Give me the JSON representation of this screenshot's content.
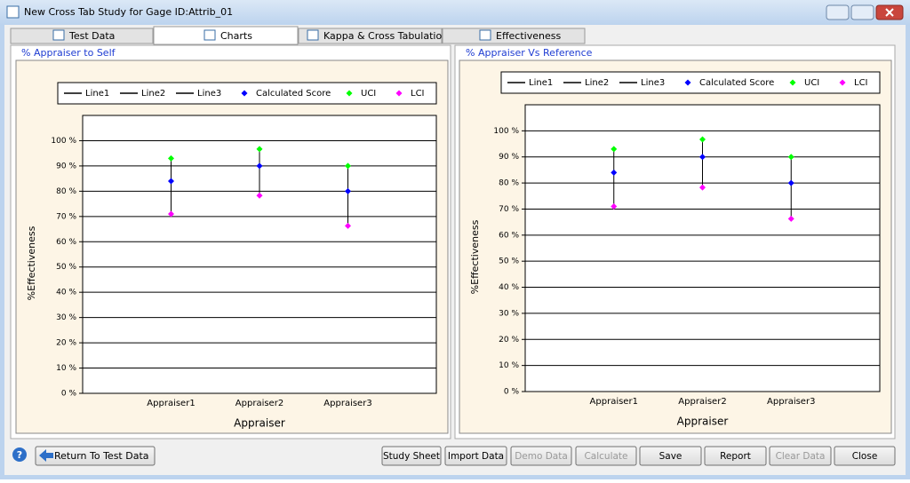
{
  "window": {
    "title": "New Cross Tab Study for Gage ID:Attrib_01"
  },
  "tabs": [
    "Test Data",
    "Charts",
    "Kappa & Cross Tabulation",
    "Effectiveness"
  ],
  "chart_data": [
    {
      "type": "interval",
      "title": "% Appraiser to Self",
      "x_label": "Appraiser",
      "y_label": "%Effectiveness",
      "categories": [
        "Appraiser1",
        "Appraiser2",
        "Appraiser3"
      ],
      "series": [
        {
          "name": "Line1",
          "color": "#000000"
        },
        {
          "name": "Line2",
          "color": "#000000"
        },
        {
          "name": "Line3",
          "color": "#000000"
        },
        {
          "name": "Calculated Score",
          "color": "#0000ff",
          "values": [
            84,
            90,
            80
          ]
        },
        {
          "name": "UCI",
          "color": "#00ff00",
          "values": [
            93,
            96.7,
            90
          ]
        },
        {
          "name": "LCI",
          "color": "#ff00ff",
          "values": [
            71,
            78.3,
            66.3
          ]
        }
      ],
      "ylim": [
        0,
        110
      ],
      "yticks": [
        {
          "value": 0,
          "label": "0 %"
        },
        {
          "value": 10,
          "label": "10 %"
        },
        {
          "value": 20,
          "label": "20 %"
        },
        {
          "value": 30,
          "label": "30 %"
        },
        {
          "value": 40,
          "label": "40 %"
        },
        {
          "value": 50,
          "label": "50 %"
        },
        {
          "value": 60,
          "label": "60 %"
        },
        {
          "value": 70,
          "label": "70 %"
        },
        {
          "value": 80,
          "label": "80 %"
        },
        {
          "value": 90,
          "label": "90 %"
        },
        {
          "value": 100,
          "label": "100 %"
        }
      ],
      "grid": true
    },
    {
      "type": "interval",
      "title": "% Appraiser Vs Reference",
      "x_label": "Appraiser",
      "y_label": "%Effectiveness",
      "categories": [
        "Appraiser1",
        "Appraiser2",
        "Appraiser3"
      ],
      "series": [
        {
          "name": "Line1",
          "color": "#000000"
        },
        {
          "name": "Line2",
          "color": "#000000"
        },
        {
          "name": "Line3",
          "color": "#000000"
        },
        {
          "name": "Calculated Score",
          "color": "#0000ff",
          "values": [
            84,
            90,
            80
          ]
        },
        {
          "name": "UCI",
          "color": "#00ff00",
          "values": [
            93,
            96.7,
            90
          ]
        },
        {
          "name": "LCI",
          "color": "#ff00ff",
          "values": [
            71,
            78.3,
            66.3
          ]
        }
      ],
      "ylim": [
        0,
        110
      ],
      "yticks": [
        {
          "value": 0,
          "label": "0 %"
        },
        {
          "value": 10,
          "label": "10 %"
        },
        {
          "value": 20,
          "label": "20 %"
        },
        {
          "value": 30,
          "label": "30 %"
        },
        {
          "value": 40,
          "label": "40 %"
        },
        {
          "value": 50,
          "label": "50 %"
        },
        {
          "value": 60,
          "label": "60 %"
        },
        {
          "value": 70,
          "label": "70 %"
        },
        {
          "value": 80,
          "label": "80 %"
        },
        {
          "value": 90,
          "label": "90 %"
        },
        {
          "value": 100,
          "label": "100 %"
        }
      ],
      "grid": true
    }
  ],
  "buttons": {
    "return": "Return To Test Data",
    "study_sheet": "Study Sheet",
    "import_data": "Import Data",
    "demo_data": "Demo Data",
    "calculate": "Calculate",
    "save": "Save",
    "report": "Report",
    "clear_data": "Clear Data",
    "close": "Close"
  }
}
